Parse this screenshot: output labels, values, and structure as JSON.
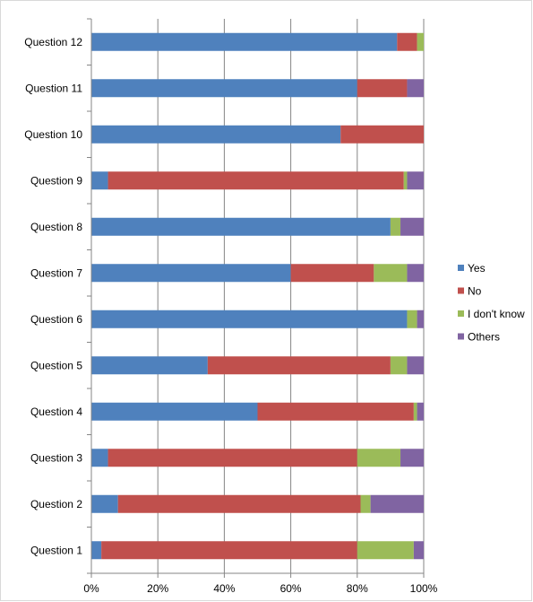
{
  "chart_data": {
    "type": "bar",
    "orientation": "horizontal",
    "stacked": "percent",
    "title": "",
    "xlabel": "",
    "ylabel": "",
    "xlim": [
      0,
      100
    ],
    "x_ticks": [
      "0%",
      "20%",
      "40%",
      "60%",
      "80%",
      "100%"
    ],
    "grid": "vertical",
    "legend_position": "right",
    "categories": [
      "Question 1",
      "Question 2",
      "Question 3",
      "Question 4",
      "Question 5",
      "Question 6",
      "Question 7",
      "Question 8",
      "Question 9",
      "Question 10",
      "Question 11",
      "Question 12"
    ],
    "series": [
      {
        "name": "Yes",
        "color": "#4f81bd",
        "values": [
          3,
          8,
          5,
          50,
          35,
          95,
          60,
          90,
          5,
          75,
          80,
          92
        ]
      },
      {
        "name": "No",
        "color": "#c0504d",
        "values": [
          77,
          73,
          75,
          47,
          55,
          0,
          25,
          0,
          89,
          25,
          15,
          6
        ]
      },
      {
        "name": "I don't know",
        "color": "#9bbb59",
        "values": [
          17,
          3,
          13,
          1,
          5,
          3,
          10,
          3,
          1,
          0,
          0,
          2
        ]
      },
      {
        "name": "Others",
        "color": "#8064a2",
        "values": [
          3,
          16,
          7,
          2,
          5,
          2,
          5,
          7,
          5,
          0,
          5,
          0
        ]
      }
    ]
  }
}
